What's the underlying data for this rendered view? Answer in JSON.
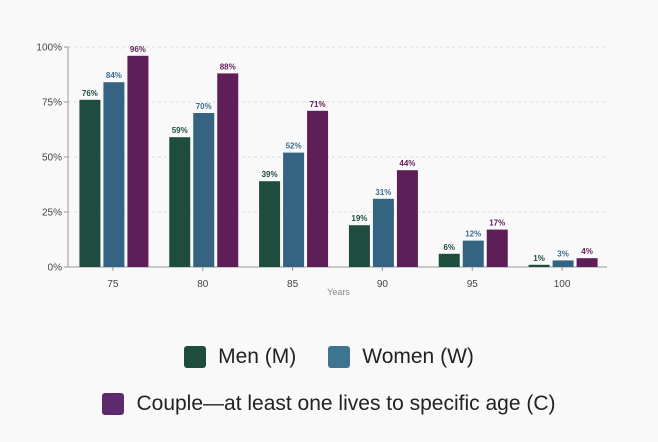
{
  "chart_data": {
    "type": "bar",
    "categories": [
      "75",
      "80",
      "85",
      "90",
      "95",
      "100"
    ],
    "xlabel": "Years",
    "ylabel": "",
    "ylim": [
      0,
      100
    ],
    "yticks": [
      "0%",
      "25%",
      "50%",
      "75%",
      "100%"
    ],
    "grid": true,
    "legend_position": "bottom",
    "series": [
      {
        "name": "Men (M)",
        "color": "#1e4d40",
        "label_color": "#1e4d40",
        "values": [
          76,
          59,
          39,
          19,
          6,
          1
        ],
        "labels": [
          "76%",
          "59%",
          "39%",
          "19%",
          "6%",
          "1%"
        ]
      },
      {
        "name": "Women (W)",
        "color": "#356483",
        "label_color": "#3e6c8c",
        "values": [
          84,
          70,
          52,
          31,
          12,
          3
        ],
        "labels": [
          "84%",
          "70%",
          "52%",
          "31%",
          "12%",
          "3%"
        ]
      },
      {
        "name": "Couple—at least one lives to specific age (C)",
        "color": "#5e1e57",
        "label_color": "#5e1e57",
        "values": [
          96,
          88,
          71,
          44,
          17,
          4
        ],
        "labels": [
          "96%",
          "88%",
          "71%",
          "44%",
          "17%",
          "4%"
        ]
      }
    ]
  },
  "legend": {
    "men_label": "Men (M)",
    "women_label": "Women (W)",
    "couple_label": "Couple—at least one lives to specific age (C)",
    "men_color": "#1e4d40",
    "women_color": "#3f7392",
    "couple_color": "#5e2a6d"
  }
}
